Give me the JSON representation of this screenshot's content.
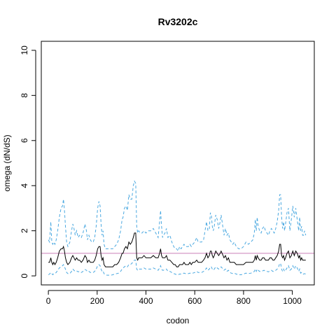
{
  "chart_data": {
    "type": "line",
    "title": "Rv3202c",
    "xlabel": "codon",
    "ylabel": "omega (dN/dS)",
    "xlim": [
      -29,
      1090
    ],
    "ylim": [
      -0.4,
      10.4
    ],
    "xticks": [
      0,
      200,
      400,
      600,
      800,
      1000
    ],
    "yticks": [
      0,
      2,
      4,
      6,
      8,
      10
    ],
    "reference_line": {
      "y": 1,
      "color": "#c97fb6"
    },
    "grid": false,
    "series": [
      {
        "role": "upper-bound",
        "style": "dashed",
        "color": "#4aa8e0",
        "x": [
          0,
          5,
          10,
          14,
          18,
          22,
          27,
          32,
          38,
          45,
          52,
          58,
          62,
          66,
          70,
          75,
          80,
          88,
          95,
          100,
          105,
          110,
          116,
          122,
          128,
          135,
          142,
          150,
          156,
          160,
          166,
          172,
          178,
          184,
          190,
          196,
          202,
          207,
          212,
          216,
          220,
          224,
          228,
          234,
          240,
          248,
          256,
          264,
          272,
          280,
          288,
          296,
          302,
          306,
          312,
          318,
          324,
          330,
          336,
          342,
          348,
          353,
          358,
          362,
          366,
          370,
          376,
          384,
          392,
          400,
          410,
          420,
          430,
          440,
          450,
          456,
          460,
          464,
          468,
          472,
          478,
          484,
          490,
          498,
          506,
          514,
          520,
          526,
          532,
          538,
          544,
          550,
          556,
          562,
          568,
          574,
          580,
          586,
          592,
          600,
          608,
          614,
          620,
          628,
          636,
          642,
          648,
          654,
          660,
          664,
          668,
          672,
          676,
          680,
          686,
          692,
          698,
          704,
          708,
          712,
          716,
          720,
          726,
          732,
          738,
          744,
          750,
          756,
          762,
          770,
          780,
          790,
          800,
          810,
          820,
          830,
          838,
          844,
          848,
          852,
          856,
          860,
          866,
          872,
          878,
          884,
          890,
          896,
          902,
          908,
          914,
          920,
          926,
          932,
          938,
          944,
          948,
          952,
          956,
          960,
          964,
          968,
          972,
          978,
          984,
          990,
          996,
          1002,
          1008,
          1014,
          1020,
          1026,
          1030,
          1034,
          1038,
          1042,
          1046,
          1050,
          1055
        ],
        "y": [
          1.6,
          1.5,
          2.4,
          1.5,
          1.4,
          1.5,
          1.4,
          1.6,
          2.0,
          2.6,
          3.0,
          3.1,
          3.4,
          2.9,
          2.2,
          1.5,
          1.3,
          1.5,
          2.0,
          2.3,
          2.1,
          1.8,
          2.0,
          1.7,
          1.8,
          1.7,
          1.9,
          2.3,
          2.0,
          1.6,
          1.8,
          1.6,
          1.5,
          1.5,
          1.7,
          2.2,
          3.0,
          3.3,
          3.1,
          2.3,
          1.8,
          2.0,
          1.4,
          1.2,
          1.2,
          1.2,
          1.2,
          1.2,
          1.3,
          1.4,
          1.6,
          2.0,
          2.5,
          2.6,
          3.0,
          3.1,
          2.9,
          3.6,
          3.4,
          3.4,
          4.0,
          4.2,
          4.1,
          2.2,
          1.9,
          2.0,
          1.9,
          1.9,
          2.0,
          1.9,
          2.0,
          2.0,
          2.1,
          1.9,
          1.7,
          2.4,
          2.9,
          2.2,
          1.7,
          1.8,
          1.9,
          2.1,
          1.7,
          1.8,
          1.5,
          1.3,
          1.2,
          1.2,
          1.1,
          1.3,
          1.2,
          1.3,
          1.4,
          1.3,
          1.3,
          1.3,
          1.4,
          1.3,
          1.4,
          1.5,
          1.7,
          1.5,
          1.5,
          1.5,
          1.6,
          2.0,
          2.4,
          2.0,
          2.1,
          2.8,
          2.7,
          2.2,
          2.0,
          2.2,
          2.7,
          2.5,
          2.1,
          2.4,
          2.7,
          2.4,
          2.1,
          1.8,
          2.1,
          1.8,
          1.9,
          1.6,
          1.5,
          1.4,
          1.5,
          1.3,
          1.2,
          1.2,
          1.3,
          1.5,
          1.4,
          1.5,
          1.6,
          1.9,
          2.5,
          2.0,
          2.6,
          2.2,
          2.0,
          1.9,
          2.1,
          2.2,
          2.0,
          1.9,
          1.8,
          2.0,
          2.1,
          2.0,
          1.9,
          2.1,
          2.4,
          2.9,
          3.6,
          3.6,
          2.6,
          2.1,
          2.4,
          2.0,
          2.3,
          2.8,
          3.0,
          2.0,
          2.5,
          3.1,
          2.6,
          3.0,
          2.5,
          2.0,
          2.6,
          2.0,
          2.2,
          1.8,
          1.8,
          2.0,
          1.8
        ]
      },
      {
        "role": "estimate",
        "style": "solid",
        "color": "#000000",
        "x": [
          0,
          5,
          10,
          14,
          18,
          22,
          27,
          32,
          38,
          45,
          52,
          58,
          62,
          66,
          70,
          75,
          80,
          88,
          95,
          100,
          105,
          110,
          116,
          122,
          128,
          135,
          142,
          150,
          156,
          160,
          166,
          172,
          178,
          184,
          190,
          196,
          202,
          207,
          212,
          216,
          220,
          224,
          228,
          234,
          240,
          248,
          256,
          264,
          272,
          280,
          288,
          296,
          302,
          306,
          312,
          318,
          324,
          330,
          336,
          342,
          348,
          353,
          358,
          362,
          366,
          370,
          376,
          384,
          392,
          400,
          410,
          420,
          430,
          440,
          450,
          456,
          460,
          464,
          468,
          472,
          478,
          484,
          490,
          498,
          506,
          514,
          520,
          526,
          532,
          538,
          544,
          550,
          556,
          562,
          568,
          574,
          580,
          586,
          592,
          600,
          608,
          614,
          620,
          628,
          636,
          642,
          648,
          654,
          660,
          664,
          668,
          672,
          676,
          680,
          686,
          692,
          698,
          704,
          708,
          712,
          716,
          720,
          726,
          732,
          738,
          744,
          750,
          756,
          762,
          770,
          780,
          790,
          800,
          810,
          820,
          830,
          838,
          844,
          848,
          852,
          856,
          860,
          866,
          872,
          878,
          884,
          890,
          896,
          902,
          908,
          914,
          920,
          926,
          932,
          938,
          944,
          948,
          952,
          956,
          960,
          964,
          968,
          972,
          978,
          984,
          990,
          996,
          1002,
          1008,
          1014,
          1020,
          1026,
          1030,
          1034,
          1038,
          1042,
          1046,
          1050,
          1055
        ],
        "y": [
          0.6,
          0.6,
          0.8,
          0.6,
          0.5,
          0.6,
          0.5,
          0.6,
          0.8,
          1.1,
          1.2,
          1.2,
          1.3,
          1.1,
          0.8,
          0.6,
          0.5,
          0.6,
          0.8,
          0.9,
          0.8,
          0.7,
          0.8,
          0.7,
          0.7,
          0.6,
          0.7,
          0.9,
          0.8,
          0.6,
          0.7,
          0.6,
          0.6,
          0.6,
          0.7,
          0.9,
          1.2,
          1.3,
          1.3,
          0.9,
          0.7,
          0.8,
          0.5,
          0.4,
          0.4,
          0.4,
          0.4,
          0.4,
          0.5,
          0.5,
          0.6,
          0.8,
          1.0,
          1.0,
          1.2,
          1.3,
          1.2,
          1.5,
          1.4,
          1.5,
          1.7,
          1.9,
          1.9,
          0.8,
          0.7,
          0.8,
          0.8,
          0.8,
          0.9,
          0.8,
          0.8,
          0.8,
          0.9,
          0.8,
          0.8,
          1.0,
          1.2,
          0.9,
          0.8,
          0.8,
          0.8,
          0.9,
          0.7,
          0.7,
          0.6,
          0.5,
          0.5,
          0.4,
          0.4,
          0.5,
          0.5,
          0.5,
          0.6,
          0.5,
          0.5,
          0.5,
          0.6,
          0.5,
          0.6,
          0.6,
          0.7,
          0.6,
          0.6,
          0.6,
          0.7,
          0.8,
          1.0,
          0.8,
          0.9,
          1.1,
          1.1,
          0.9,
          0.8,
          0.9,
          1.1,
          1.0,
          0.9,
          1.0,
          1.1,
          1.0,
          0.9,
          0.8,
          0.9,
          0.7,
          0.8,
          0.6,
          0.6,
          0.6,
          0.6,
          0.5,
          0.5,
          0.5,
          0.5,
          0.6,
          0.6,
          0.6,
          0.6,
          0.7,
          0.9,
          0.7,
          0.9,
          0.8,
          0.7,
          0.7,
          0.8,
          0.8,
          0.7,
          0.7,
          0.7,
          0.8,
          0.8,
          0.7,
          0.7,
          0.8,
          0.9,
          1.1,
          1.4,
          1.4,
          0.9,
          0.8,
          0.9,
          0.7,
          0.8,
          1.0,
          1.1,
          0.8,
          0.9,
          1.1,
          0.9,
          1.1,
          1.0,
          0.8,
          0.9,
          0.7,
          0.8,
          0.7,
          0.7,
          0.7,
          0.7
        ]
      },
      {
        "role": "lower-bound",
        "style": "dashed",
        "color": "#4aa8e0",
        "x": [
          0,
          5,
          10,
          14,
          18,
          22,
          27,
          32,
          38,
          45,
          52,
          58,
          62,
          66,
          70,
          75,
          80,
          88,
          95,
          100,
          105,
          110,
          116,
          122,
          128,
          135,
          142,
          150,
          156,
          160,
          166,
          172,
          178,
          184,
          190,
          196,
          202,
          207,
          212,
          216,
          220,
          224,
          228,
          234,
          240,
          248,
          256,
          264,
          272,
          280,
          288,
          296,
          302,
          306,
          312,
          318,
          324,
          330,
          336,
          342,
          348,
          353,
          358,
          362,
          366,
          370,
          376,
          384,
          392,
          400,
          410,
          420,
          430,
          440,
          450,
          456,
          460,
          464,
          468,
          472,
          478,
          484,
          490,
          498,
          506,
          514,
          520,
          526,
          532,
          538,
          544,
          550,
          556,
          562,
          568,
          574,
          580,
          586,
          592,
          600,
          608,
          614,
          620,
          628,
          636,
          642,
          648,
          654,
          660,
          664,
          668,
          672,
          676,
          680,
          686,
          692,
          698,
          704,
          708,
          712,
          716,
          720,
          726,
          732,
          738,
          744,
          750,
          756,
          762,
          770,
          780,
          790,
          800,
          810,
          820,
          830,
          838,
          844,
          848,
          852,
          856,
          860,
          866,
          872,
          878,
          884,
          890,
          896,
          902,
          908,
          914,
          920,
          926,
          932,
          938,
          944,
          948,
          952,
          956,
          960,
          964,
          968,
          972,
          978,
          984,
          990,
          996,
          1002,
          1008,
          1014,
          1020,
          1026,
          1030,
          1034,
          1038,
          1042,
          1046,
          1050,
          1055
        ],
        "y": [
          0.05,
          0.08,
          0.15,
          0.1,
          0.05,
          0.1,
          0.1,
          0.15,
          0.25,
          0.35,
          0.4,
          0.45,
          0.5,
          0.4,
          0.3,
          0.15,
          0.1,
          0.1,
          0.2,
          0.3,
          0.25,
          0.2,
          0.22,
          0.18,
          0.2,
          0.15,
          0.2,
          0.28,
          0.25,
          0.18,
          0.2,
          0.15,
          0.15,
          0.15,
          0.2,
          0.3,
          0.45,
          0.5,
          0.45,
          0.3,
          0.2,
          0.22,
          0.1,
          0.05,
          0.03,
          0.03,
          0.03,
          0.05,
          0.08,
          0.1,
          0.12,
          0.2,
          0.3,
          0.35,
          0.4,
          0.45,
          0.4,
          0.5,
          0.5,
          0.55,
          0.65,
          0.7,
          0.7,
          0.3,
          0.25,
          0.3,
          0.3,
          0.3,
          0.35,
          0.3,
          0.3,
          0.3,
          0.35,
          0.3,
          0.25,
          0.35,
          0.45,
          0.3,
          0.25,
          0.25,
          0.3,
          0.3,
          0.2,
          0.2,
          0.15,
          0.1,
          0.08,
          0.05,
          0.05,
          0.08,
          0.08,
          0.1,
          0.12,
          0.1,
          0.1,
          0.1,
          0.12,
          0.1,
          0.12,
          0.15,
          0.2,
          0.15,
          0.15,
          0.15,
          0.2,
          0.25,
          0.35,
          0.25,
          0.3,
          0.4,
          0.4,
          0.3,
          0.25,
          0.3,
          0.4,
          0.35,
          0.3,
          0.35,
          0.4,
          0.35,
          0.3,
          0.25,
          0.3,
          0.2,
          0.25,
          0.15,
          0.12,
          0.1,
          0.12,
          0.08,
          0.05,
          0.05,
          0.08,
          0.12,
          0.1,
          0.12,
          0.15,
          0.2,
          0.3,
          0.2,
          0.3,
          0.25,
          0.2,
          0.2,
          0.22,
          0.25,
          0.2,
          0.2,
          0.18,
          0.22,
          0.25,
          0.2,
          0.2,
          0.25,
          0.3,
          0.4,
          0.55,
          0.55,
          0.3,
          0.2,
          0.3,
          0.2,
          0.25,
          0.35,
          0.45,
          0.25,
          0.3,
          0.45,
          0.3,
          0.45,
          0.35,
          0.2,
          0.3,
          0.12,
          0.15,
          0.08,
          0.08,
          0.1,
          0.08
        ]
      }
    ]
  }
}
